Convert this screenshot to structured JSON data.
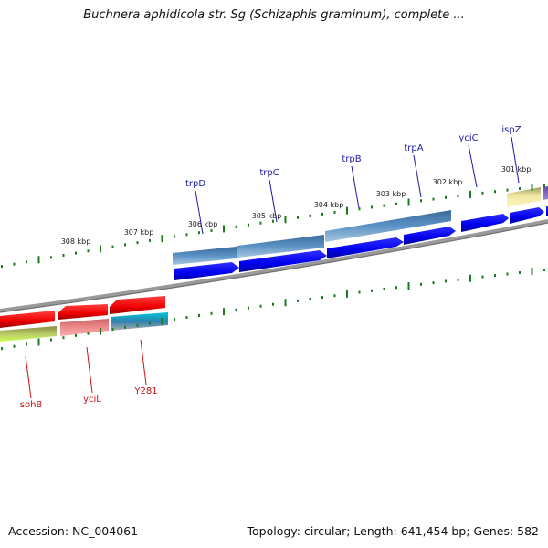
{
  "title": "Buchnera aphidicola str. Sg (Schizaphis graminum), complete ...",
  "footer": {
    "accession": "Accession: NC_004061",
    "summary": "Topology: circular; Length: 641,454 bp; Genes: 582"
  },
  "colors": {
    "background": "#ffffff",
    "forward_cds": "#0000ee",
    "reverse_cds": "#ee0000",
    "forward_label": "#1a1aa6",
    "reverse_label": "#cc1111",
    "gene_operon": "#4f86b8",
    "tick": "#1b7a1b",
    "backbone": "#808080"
  },
  "ruler": {
    "labels": [
      "301 kbp",
      "302 kbp",
      "303 kbp",
      "304 kbp",
      "305 kbp",
      "306 kbp",
      "307 kbp",
      "308 kbp"
    ]
  },
  "forward_labels": [
    "ispZ",
    "yciC",
    "trpA",
    "trpB",
    "trpC",
    "trpD"
  ],
  "reverse_labels": [
    "Y281",
    "yciL",
    "sohB"
  ]
}
